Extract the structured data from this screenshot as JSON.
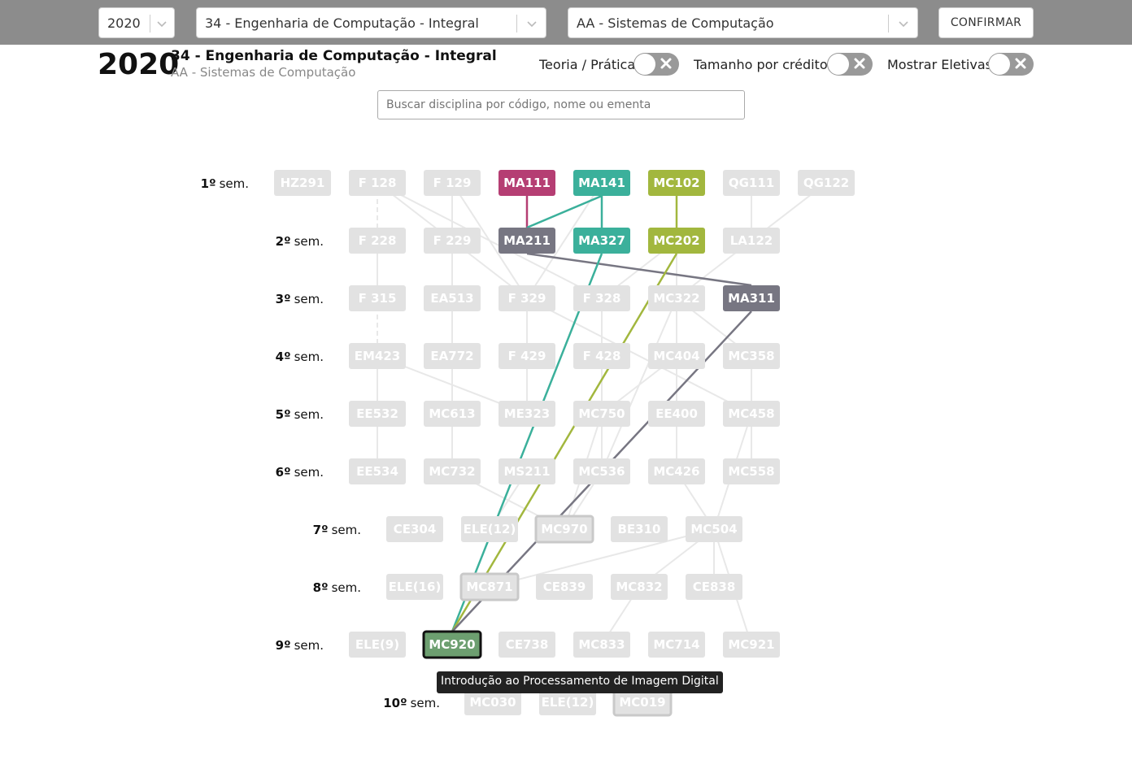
{
  "filters": {
    "year": "2020",
    "course": "34 - Engenharia de Computação - Integral",
    "modality": "AA - Sistemas de Computação",
    "confirm_label": "CONFIRMAR"
  },
  "header": {
    "year": "2020",
    "course": "34 - Engenharia de Computação - Integral",
    "modality": "AA - Sistemas de Computação"
  },
  "toggles": [
    {
      "label": "Teoria / Prática",
      "on": false
    },
    {
      "label": "Tamanho por créditos",
      "on": false
    },
    {
      "label": "Mostrar Eletivas",
      "on": false
    }
  ],
  "search": {
    "placeholder": "Buscar disciplina por código, nome ou ementa",
    "value": ""
  },
  "colors": {
    "inactive": "#e2e2e2",
    "inactive_edge": "#e8e8e8",
    "pink": "#b53e73",
    "teal": "#3bb09b",
    "olive": "#a2b73e",
    "gray": "#777682",
    "selected": "#6d9f70"
  },
  "semesters": [
    {
      "num": "1",
      "suffix": "º",
      "word": "sem.",
      "nodes": [
        "HZ291",
        "F 128",
        "F 129",
        "MA111",
        "MA141",
        "MC102",
        "QG111",
        "QG122"
      ]
    },
    {
      "num": "2",
      "suffix": "º",
      "word": "sem.",
      "nodes": [
        "F 228",
        "F 229",
        "MA211",
        "MA327",
        "MC202",
        "LA122"
      ]
    },
    {
      "num": "3",
      "suffix": "º",
      "word": "sem.",
      "nodes": [
        "F 315",
        "EA513",
        "F 329",
        "F 328",
        "MC322",
        "MA311"
      ]
    },
    {
      "num": "4",
      "suffix": "º",
      "word": "sem.",
      "nodes": [
        "EM423",
        "EA772",
        "F 429",
        "F 428",
        "MC404",
        "MC358"
      ]
    },
    {
      "num": "5",
      "suffix": "º",
      "word": "sem.",
      "nodes": [
        "EE532",
        "MC613",
        "ME323",
        "MC750",
        "EE400",
        "MC458"
      ]
    },
    {
      "num": "6",
      "suffix": "º",
      "word": "sem.",
      "nodes": [
        "EE534",
        "MC732",
        "MS211",
        "MC536",
        "MC426",
        "MC558"
      ]
    },
    {
      "num": "7",
      "suffix": "º",
      "word": "sem.",
      "nodes": [
        "CE304",
        "ELE(12)",
        "MC970",
        "BE310",
        "MC504"
      ]
    },
    {
      "num": "8",
      "suffix": "º",
      "word": "sem.",
      "nodes": [
        "ELE(16)",
        "MC871",
        "CE839",
        "MC832",
        "CE838"
      ]
    },
    {
      "num": "9",
      "suffix": "º",
      "word": "sem.",
      "nodes": [
        "ELE(9)",
        "MC920",
        "CE738",
        "MC833",
        "MC714",
        "MC921"
      ]
    },
    {
      "num": "10",
      "suffix": "º",
      "word": "sem.",
      "nodes": [
        "MC030",
        "ELE(12)",
        "MC019"
      ]
    }
  ],
  "highlight": {
    "MA111": "pink",
    "MA141": "teal",
    "MA327": "teal",
    "MC102": "olive",
    "MC202": "olive",
    "MA211": "gray",
    "MA311": "gray",
    "MC920": "selected"
  },
  "bordered": [
    "MC970",
    "MC871",
    "MC019"
  ],
  "selected_node": "MC920",
  "tooltip": "Introdução ao Processamento de Imagem Digital"
}
